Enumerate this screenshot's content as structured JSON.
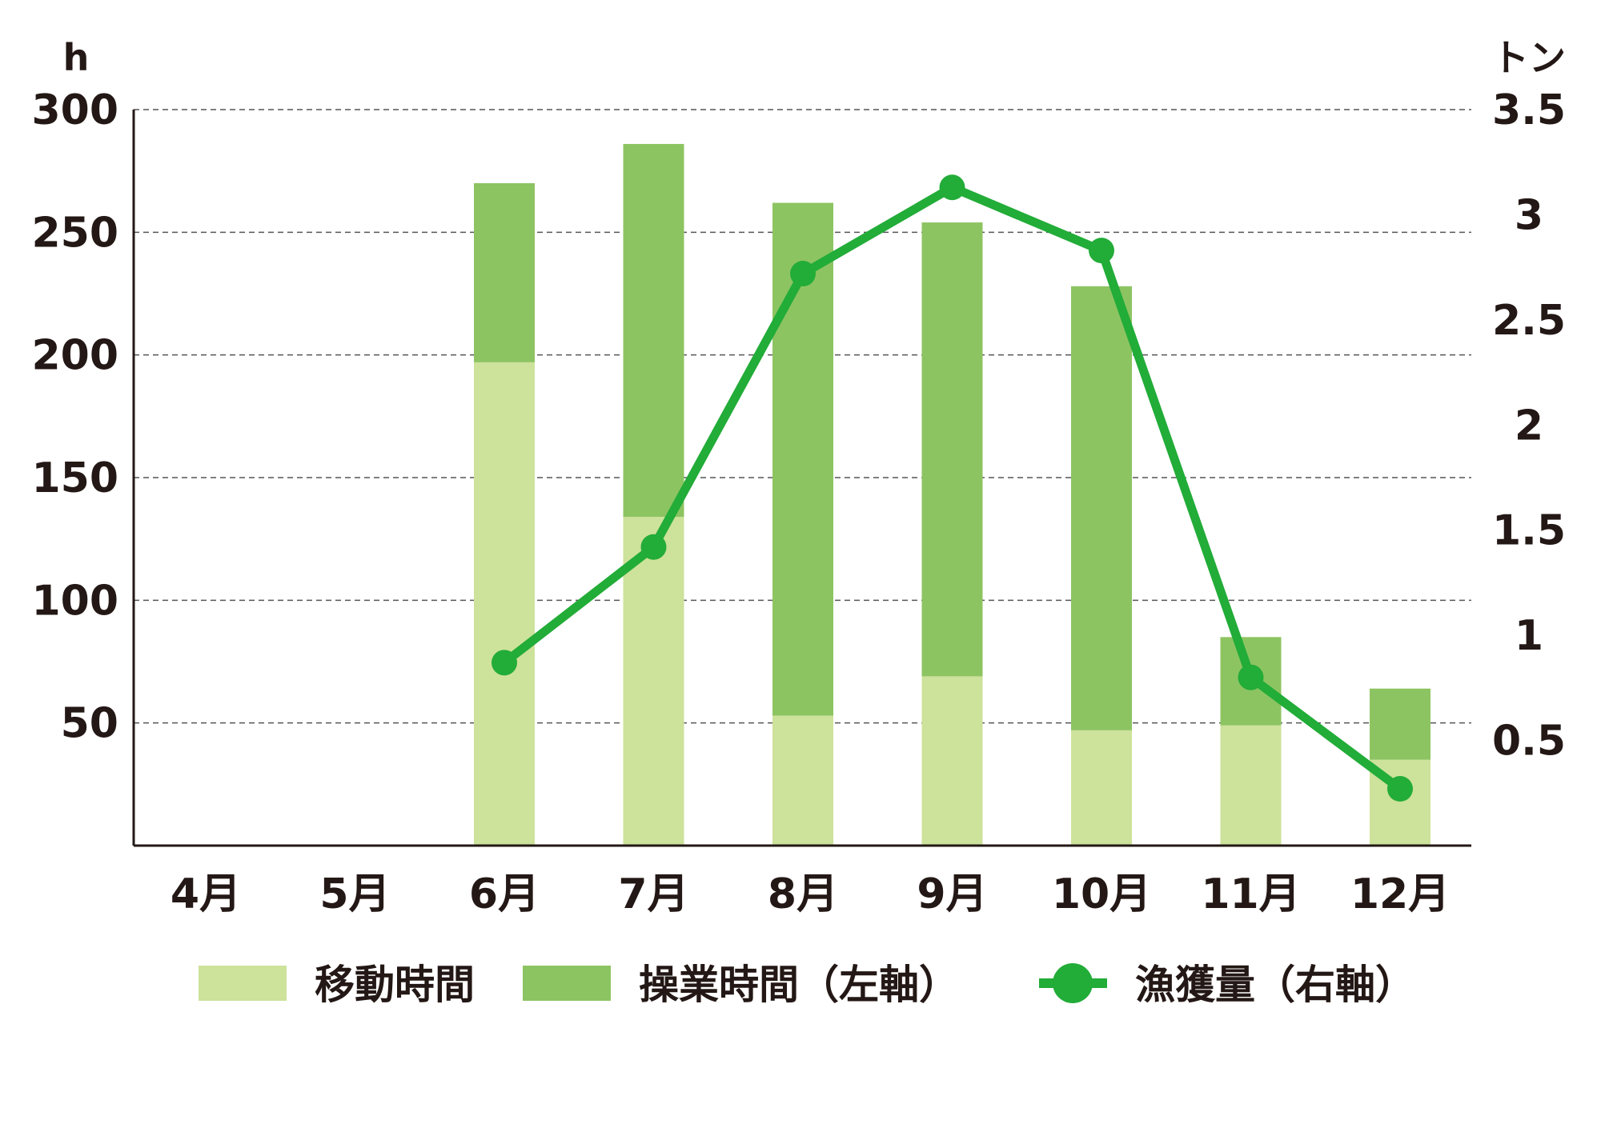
{
  "colors": {
    "travel": "#cde29a",
    "fishing": "#8dc462",
    "catch": "#22ac38",
    "grid": "#555555",
    "axis": "#231815"
  },
  "chart_data": {
    "type": "bar",
    "stacked": true,
    "categories": [
      "4月",
      "5月",
      "6月",
      "7月",
      "8月",
      "9月",
      "10月",
      "11月",
      "12月"
    ],
    "y_left": {
      "unit": "h",
      "ylim": [
        0,
        300
      ],
      "ticks": [
        50,
        100,
        150,
        200,
        250,
        300
      ]
    },
    "y_right": {
      "unit": "トン",
      "ylim": [
        0,
        3.5
      ],
      "ticks": [
        "0.5",
        "1",
        "1.5",
        "2",
        "2.5",
        "3",
        "3.5"
      ]
    },
    "grid": true,
    "legend_position": "bottom",
    "series": [
      {
        "name": "移動時間",
        "type": "bar",
        "axis": "left",
        "values": [
          0,
          0,
          197,
          134,
          53,
          69,
          47,
          49,
          35
        ]
      },
      {
        "name": "操業時間（左軸）",
        "type": "bar",
        "axis": "left",
        "values": [
          0,
          0,
          73,
          152,
          209,
          185,
          181,
          36,
          29
        ]
      },
      {
        "name": "漁獲量（右軸）",
        "type": "line",
        "axis": "right",
        "values": [
          null,
          null,
          0.87,
          1.42,
          2.72,
          3.13,
          2.83,
          0.8,
          0.27
        ]
      }
    ]
  }
}
